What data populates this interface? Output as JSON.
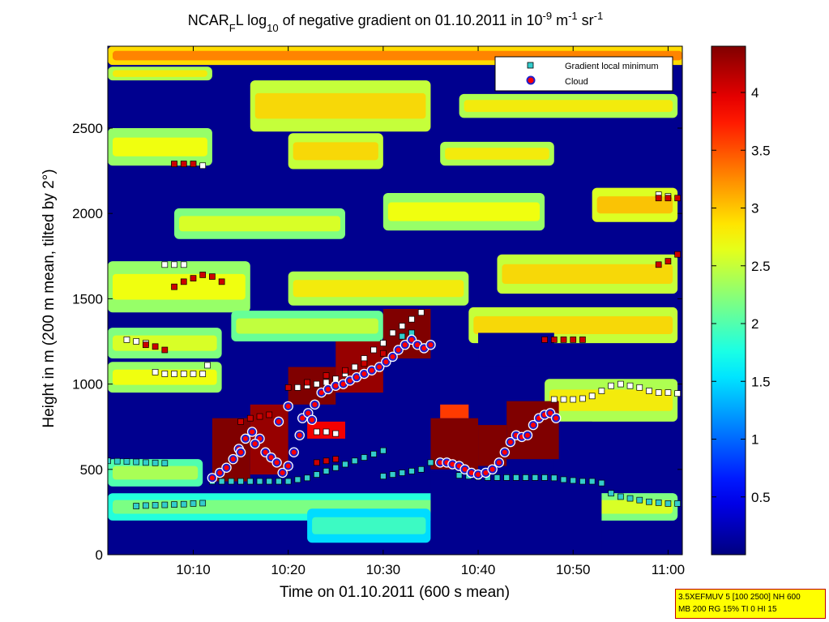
{
  "chart_data": {
    "type": "heatmap",
    "title": {
      "parts": [
        {
          "text": "NCAR",
          "style": "normal"
        },
        {
          "text": "F",
          "style": "sub"
        },
        {
          "text": "L log",
          "style": "normal"
        },
        {
          "text": "10",
          "style": "sub"
        },
        {
          "text": " of negative gradient on 01.10.2011 in 10",
          "style": "normal"
        },
        {
          "text": "-9",
          "style": "sup"
        },
        {
          "text": " m",
          "style": "normal"
        },
        {
          "text": "-1",
          "style": "sup"
        },
        {
          "text": " sr",
          "style": "normal"
        },
        {
          "text": "-1",
          "style": "sup"
        }
      ]
    },
    "xlabel": "Time on 01.10.2011 (600 s mean)",
    "ylabel": "Height in m (200 m mean, tilted by 2°)",
    "x_ticks": [
      "10:10",
      "10:20",
      "10:30",
      "10:40",
      "10:50",
      "11:00"
    ],
    "x_tick_minutes": [
      10,
      20,
      30,
      40,
      50,
      60
    ],
    "xlim_minutes": [
      1,
      61.5
    ],
    "y_ticks": [
      0,
      500,
      1000,
      1500,
      2000,
      2500
    ],
    "ylim": [
      0,
      2980
    ],
    "colorbar": {
      "range": [
        0,
        4.4
      ],
      "ticks": [
        0.5,
        1,
        1.5,
        2,
        2.5,
        3,
        3.5,
        4
      ],
      "colormap": "jet"
    },
    "legend": {
      "position": "top-right",
      "entries": [
        {
          "label": "Gradient local minimum",
          "marker": "square",
          "color": "#33cccc"
        },
        {
          "label": "Cloud",
          "marker": "circle",
          "color": "#ff0000",
          "edge": "#0000cc"
        }
      ]
    },
    "layers": [
      {
        "t0": 1,
        "t1": 62,
        "h0": 2870,
        "h1": 2980,
        "v": 2.9
      },
      {
        "t0": 1,
        "t1": 12,
        "h0": 2780,
        "h1": 2860,
        "v": 2.4
      },
      {
        "t0": 16,
        "t1": 35,
        "h0": 2480,
        "h1": 2780,
        "v": 2.5
      },
      {
        "t0": 38,
        "t1": 61,
        "h0": 2560,
        "h1": 2700,
        "v": 2.4
      },
      {
        "t0": 1,
        "t1": 12,
        "h0": 2280,
        "h1": 2500,
        "v": 2.3
      },
      {
        "t0": 20,
        "t1": 30,
        "h0": 2260,
        "h1": 2470,
        "v": 2.5
      },
      {
        "t0": 36,
        "t1": 48,
        "h0": 2280,
        "h1": 2420,
        "v": 2.4
      },
      {
        "t0": 8,
        "t1": 26,
        "h0": 1850,
        "h1": 2030,
        "v": 2.2
      },
      {
        "t0": 30,
        "t1": 47,
        "h0": 1900,
        "h1": 2120,
        "v": 2.3
      },
      {
        "t0": 52,
        "t1": 61,
        "h0": 1950,
        "h1": 2150,
        "v": 2.6
      },
      {
        "t0": 1,
        "t1": 16,
        "h0": 1420,
        "h1": 1720,
        "v": 2.3
      },
      {
        "t0": 20,
        "t1": 39,
        "h0": 1460,
        "h1": 1660,
        "v": 2.4
      },
      {
        "t0": 42,
        "t1": 61,
        "h0": 1530,
        "h1": 1760,
        "v": 2.5
      },
      {
        "t0": 1,
        "t1": 13,
        "h0": 1150,
        "h1": 1330,
        "v": 2.2
      },
      {
        "t0": 14,
        "t1": 30,
        "h0": 1250,
        "h1": 1430,
        "v": 2.1
      },
      {
        "t0": 39,
        "t1": 61,
        "h0": 1240,
        "h1": 1450,
        "v": 2.5
      },
      {
        "t0": 1,
        "t1": 13,
        "h0": 950,
        "h1": 1130,
        "v": 2.3
      },
      {
        "t0": 47,
        "t1": 61,
        "h0": 780,
        "h1": 1030,
        "v": 2.4
      },
      {
        "t0": 1,
        "t1": 11,
        "h0": 400,
        "h1": 560,
        "v": 2.0
      },
      {
        "t0": 1,
        "t1": 61,
        "h0": 200,
        "h1": 360,
        "v": 1.8
      },
      {
        "t0": 22,
        "t1": 35,
        "h0": 70,
        "h1": 270,
        "v": 1.5
      },
      {
        "t0": 52,
        "t1": 61,
        "h0": 200,
        "h1": 360,
        "v": 2.2
      }
    ],
    "cloud_blocks": [
      {
        "t0": 12,
        "t1": 16,
        "h0": 430,
        "h1": 800,
        "v": 4.4
      },
      {
        "t0": 16,
        "t1": 20,
        "h0": 470,
        "h1": 880,
        "v": 4.3
      },
      {
        "t0": 20,
        "t1": 25,
        "h0": 880,
        "h1": 1100,
        "v": 4.4
      },
      {
        "t0": 25,
        "t1": 30,
        "h0": 950,
        "h1": 1250,
        "v": 4.3
      },
      {
        "t0": 30,
        "t1": 35,
        "h0": 1150,
        "h1": 1440,
        "v": 4.4
      },
      {
        "t0": 22,
        "t1": 26,
        "h0": 680,
        "h1": 780,
        "v": 3.9
      },
      {
        "t0": 35,
        "t1": 40,
        "h0": 500,
        "h1": 800,
        "v": 4.4
      },
      {
        "t0": 40,
        "t1": 43,
        "h0": 520,
        "h1": 760,
        "v": 4.4
      },
      {
        "t0": 43,
        "t1": 48.5,
        "h0": 560,
        "h1": 900,
        "v": 4.4
      },
      {
        "t0": 36,
        "t1": 39,
        "h0": 800,
        "h1": 880,
        "v": 3.6
      }
    ],
    "gap_regions": [
      {
        "t0": 35,
        "t1": 53,
        "h0": 0,
        "h1": 480
      },
      {
        "t0": 40,
        "t1": 48,
        "h0": 1100,
        "h1": 1300
      },
      {
        "t0": 48,
        "t1": 52,
        "h0": 450,
        "h1": 780
      }
    ],
    "cyan_minima": [
      [
        1,
        550
      ],
      [
        2,
        548
      ],
      [
        3,
        546
      ],
      [
        4,
        544
      ],
      [
        5,
        540
      ],
      [
        6,
        538
      ],
      [
        7,
        536
      ],
      [
        4,
        285
      ],
      [
        5,
        288
      ],
      [
        6,
        290
      ],
      [
        7,
        292
      ],
      [
        8,
        294
      ],
      [
        9,
        296
      ],
      [
        10,
        300
      ],
      [
        11,
        302
      ],
      [
        12,
        430
      ],
      [
        13,
        430
      ],
      [
        14,
        430
      ],
      [
        15,
        430
      ],
      [
        16,
        430
      ],
      [
        17,
        430
      ],
      [
        18,
        430
      ],
      [
        19,
        430
      ],
      [
        20,
        430
      ],
      [
        21,
        440
      ],
      [
        22,
        450
      ],
      [
        23,
        470
      ],
      [
        24,
        490
      ],
      [
        25,
        510
      ],
      [
        26,
        530
      ],
      [
        27,
        550
      ],
      [
        28,
        570
      ],
      [
        29,
        590
      ],
      [
        30,
        610
      ],
      [
        30,
        460
      ],
      [
        31,
        470
      ],
      [
        32,
        480
      ],
      [
        33,
        490
      ],
      [
        34,
        500
      ],
      [
        35,
        540
      ],
      [
        36,
        540
      ],
      [
        37,
        535
      ],
      [
        38,
        530
      ],
      [
        38,
        465
      ],
      [
        39,
        460
      ],
      [
        40,
        455
      ],
      [
        41,
        452
      ],
      [
        42,
        452
      ],
      [
        43,
        452
      ],
      [
        44,
        452
      ],
      [
        45,
        452
      ],
      [
        46,
        452
      ],
      [
        47,
        452
      ],
      [
        48,
        450
      ],
      [
        49,
        440
      ],
      [
        50,
        435
      ],
      [
        51,
        430
      ],
      [
        52,
        430
      ],
      [
        53,
        420
      ],
      [
        54,
        360
      ],
      [
        55,
        340
      ],
      [
        56,
        330
      ],
      [
        57,
        320
      ],
      [
        58,
        310
      ],
      [
        59,
        305
      ],
      [
        60,
        300
      ],
      [
        61,
        300
      ],
      [
        32,
        1280
      ],
      [
        33,
        1300
      ]
    ],
    "white_minima": [
      [
        8,
        2290
      ],
      [
        9,
        2290
      ],
      [
        10,
        2290
      ],
      [
        11,
        2280
      ],
      [
        3,
        1260
      ],
      [
        4,
        1250
      ],
      [
        5,
        1240
      ],
      [
        6,
        1070
      ],
      [
        7,
        1060
      ],
      [
        8,
        1060
      ],
      [
        9,
        1060
      ],
      [
        10,
        1060
      ],
      [
        11,
        1060
      ],
      [
        11.5,
        1110
      ],
      [
        21,
        980
      ],
      [
        22,
        990
      ],
      [
        23,
        1000
      ],
      [
        24,
        1010
      ],
      [
        25,
        1030
      ],
      [
        26,
        1060
      ],
      [
        27,
        1100
      ],
      [
        28,
        1150
      ],
      [
        29,
        1200
      ],
      [
        30,
        1240
      ],
      [
        31,
        1300
      ],
      [
        32,
        1340
      ],
      [
        33,
        1380
      ],
      [
        34,
        1420
      ],
      [
        23,
        720
      ],
      [
        24,
        720
      ],
      [
        25,
        710
      ],
      [
        48,
        910
      ],
      [
        49,
        910
      ],
      [
        50,
        910
      ],
      [
        51,
        915
      ],
      [
        52,
        930
      ],
      [
        53,
        960
      ],
      [
        54,
        990
      ],
      [
        55,
        1000
      ],
      [
        56,
        990
      ],
      [
        57,
        980
      ],
      [
        58,
        960
      ],
      [
        59,
        950
      ],
      [
        60,
        950
      ],
      [
        61,
        945
      ],
      [
        59,
        2110
      ],
      [
        60,
        2100
      ],
      [
        7,
        1700
      ],
      [
        8,
        1700
      ],
      [
        9,
        1700
      ]
    ],
    "red_minima": [
      [
        8,
        2290
      ],
      [
        9,
        2290
      ],
      [
        10,
        2290
      ],
      [
        5,
        1230
      ],
      [
        6,
        1220
      ],
      [
        7,
        1200
      ],
      [
        8,
        1570
      ],
      [
        9,
        1600
      ],
      [
        10,
        1620
      ],
      [
        11,
        1640
      ],
      [
        12,
        1630
      ],
      [
        13,
        1600
      ],
      [
        20,
        980
      ],
      [
        22,
        1010
      ],
      [
        24,
        1050
      ],
      [
        26,
        1080
      ],
      [
        28,
        1120
      ],
      [
        30,
        1180
      ],
      [
        15,
        780
      ],
      [
        16,
        800
      ],
      [
        17,
        810
      ],
      [
        18,
        820
      ],
      [
        23,
        540
      ],
      [
        24,
        550
      ],
      [
        25,
        560
      ],
      [
        47,
        1260
      ],
      [
        48,
        1260
      ],
      [
        49,
        1260
      ],
      [
        50,
        1260
      ],
      [
        51,
        1260
      ],
      [
        59,
        2090
      ],
      [
        60,
        2090
      ],
      [
        61,
        2090
      ],
      [
        59,
        1700
      ],
      [
        60,
        1720
      ],
      [
        61,
        1760
      ]
    ],
    "cloud_points": [
      [
        12,
        450
      ],
      [
        12.8,
        480
      ],
      [
        13.5,
        510
      ],
      [
        14.2,
        560
      ],
      [
        14.8,
        620
      ],
      [
        15.5,
        680
      ],
      [
        16.2,
        720
      ],
      [
        17,
        680
      ],
      [
        17.6,
        600
      ],
      [
        18.2,
        570
      ],
      [
        18.8,
        540
      ],
      [
        19.4,
        480
      ],
      [
        20,
        520
      ],
      [
        20.6,
        600
      ],
      [
        21.2,
        700
      ],
      [
        21.5,
        800
      ],
      [
        22.1,
        830
      ],
      [
        22.8,
        880
      ],
      [
        23.5,
        950
      ],
      [
        24.2,
        970
      ],
      [
        25,
        990
      ],
      [
        25.8,
        1000
      ],
      [
        26.5,
        1020
      ],
      [
        27.2,
        1040
      ],
      [
        28,
        1060
      ],
      [
        28.8,
        1080
      ],
      [
        29.6,
        1100
      ],
      [
        30.3,
        1130
      ],
      [
        31,
        1160
      ],
      [
        31.6,
        1200
      ],
      [
        32.3,
        1230
      ],
      [
        33,
        1260
      ],
      [
        33.6,
        1230
      ],
      [
        34.3,
        1210
      ],
      [
        35,
        1230
      ],
      [
        36,
        540
      ],
      [
        36.7,
        540
      ],
      [
        37.3,
        530
      ],
      [
        38,
        520
      ],
      [
        38.6,
        500
      ],
      [
        39.3,
        480
      ],
      [
        40,
        470
      ],
      [
        40.8,
        480
      ],
      [
        41.5,
        500
      ],
      [
        42.2,
        540
      ],
      [
        42.8,
        600
      ],
      [
        43.4,
        660
      ],
      [
        44,
        700
      ],
      [
        44.6,
        690
      ],
      [
        45.2,
        700
      ],
      [
        45.8,
        760
      ],
      [
        46.4,
        800
      ],
      [
        47,
        820
      ],
      [
        47.6,
        830
      ],
      [
        48.2,
        800
      ],
      [
        15,
        600
      ],
      [
        16.5,
        650
      ],
      [
        19,
        780
      ],
      [
        20,
        870
      ],
      [
        22.5,
        790
      ]
    ]
  },
  "info_box": {
    "line1": "3.5XEFMUV 5 [100 2500] NH 600",
    "line2": "MB 200 RG 15% TI 0 HI 15"
  }
}
